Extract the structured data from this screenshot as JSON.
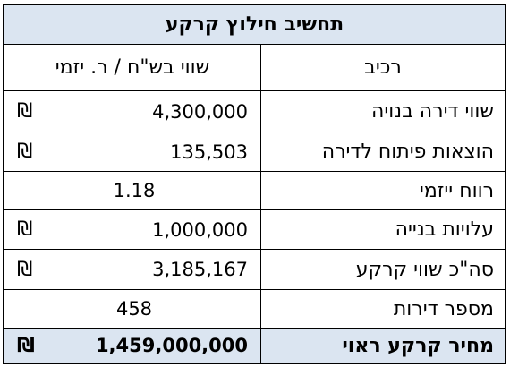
{
  "title": "תחשיב חילוץ קרקע",
  "header": {
    "component": "רכיב",
    "value": "שווי בש\"ח / ר. יזמי"
  },
  "currency_symbol": "₪",
  "rows": [
    {
      "label": "שווי דירה בנויה",
      "value": "4,300,000",
      "currency": true
    },
    {
      "label": "הוצאות פיתוח לדירה",
      "value": "135,503",
      "currency": true
    },
    {
      "label": "רווח ייזמי",
      "value": "1.18",
      "currency": false
    },
    {
      "label": "עלויות בנייה",
      "value": "1,000,000",
      "currency": true
    },
    {
      "label": "סה\"כ שווי קרקע",
      "value": "3,185,167",
      "currency": true
    },
    {
      "label": "מספר דירות",
      "value": "458",
      "currency": false
    }
  ],
  "total": {
    "label": "מחיר קרקע ראוי",
    "value": "1,459,000,000",
    "currency": true
  },
  "colors": {
    "shade": "#dbe5f1",
    "border": "#000000"
  }
}
